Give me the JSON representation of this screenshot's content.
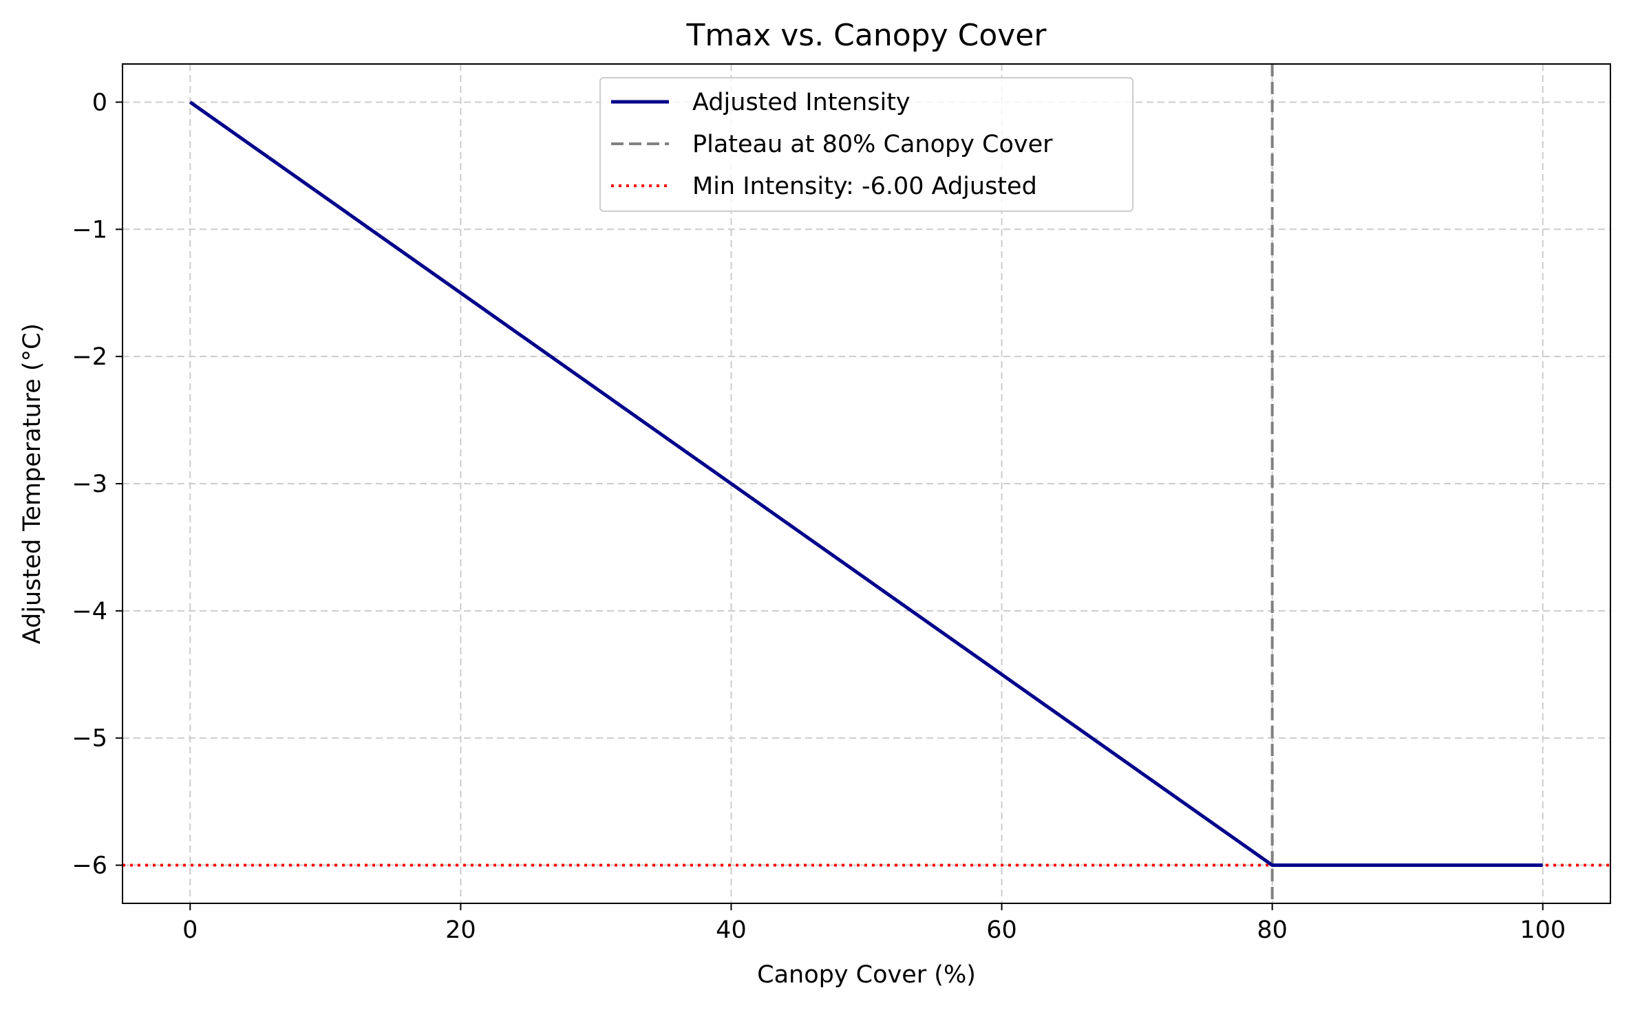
{
  "chart_data": {
    "type": "line",
    "title": "Tmax vs. Canopy Cover",
    "xlabel": "Canopy Cover (%)",
    "ylabel": "Adjusted Temperature (°C)",
    "xlim": [
      -5,
      105
    ],
    "ylim": [
      -6.3,
      0.3
    ],
    "xticks": [
      0,
      20,
      40,
      60,
      80,
      100
    ],
    "xtick_labels": [
      "0",
      "20",
      "40",
      "60",
      "80",
      "100"
    ],
    "yticks": [
      0,
      -1,
      -2,
      -3,
      -4,
      -5,
      -6
    ],
    "ytick_labels": [
      "0",
      "−1",
      "−2",
      "−3",
      "−4",
      "−5",
      "−6"
    ],
    "grid": true,
    "legend_position": "upper-center",
    "series": [
      {
        "name": "Adjusted Intensity",
        "style": "solid",
        "color": "#00008b",
        "x": [
          0,
          80,
          100
        ],
        "y": [
          0,
          -6,
          -6
        ]
      }
    ],
    "reference_lines": [
      {
        "name": "Plateau at 80% Canopy Cover",
        "orientation": "vertical",
        "value": 80,
        "style": "dashed",
        "color": "#808080"
      },
      {
        "name": "Min Intensity: -6.00 Adjusted",
        "orientation": "horizontal",
        "value": -6,
        "style": "dotted",
        "color": "#ff0000"
      }
    ]
  }
}
